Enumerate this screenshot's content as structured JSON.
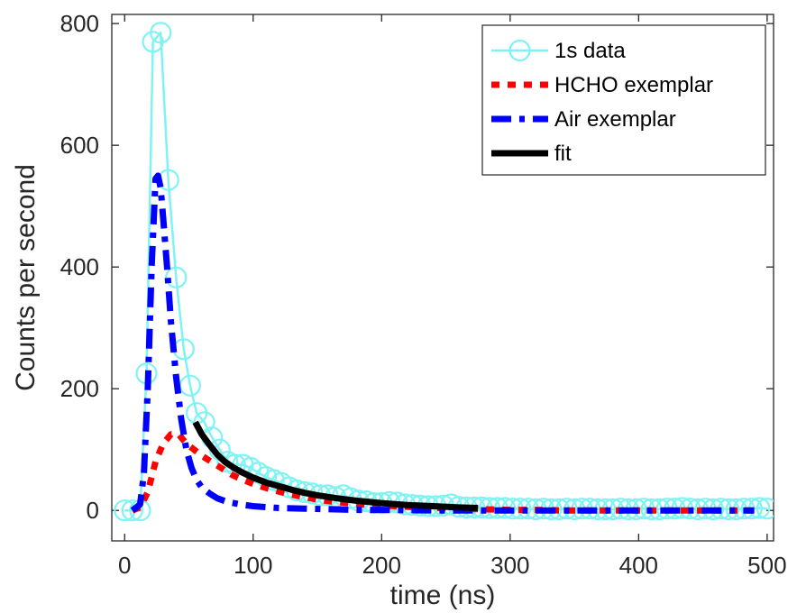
{
  "chart_data": {
    "type": "line",
    "xlabel": "time (ns)",
    "ylabel": "Counts per second",
    "xlim": [
      -10,
      505
    ],
    "ylim": [
      -50,
      815
    ],
    "x_ticks": [
      0,
      100,
      200,
      300,
      400,
      500
    ],
    "y_ticks": [
      0,
      200,
      400,
      600,
      800
    ],
    "x_tick_labels": [
      "0",
      "100",
      "200",
      "300",
      "400",
      "500"
    ],
    "y_tick_labels": [
      "0",
      "200",
      "400",
      "600",
      "800"
    ],
    "grid": false,
    "legend_position": "top-right",
    "series": [
      {
        "name": "1s data",
        "style": "solid-circle",
        "color": "#7ff3f3",
        "points": [
          [
            0,
            0
          ],
          [
            6,
            0
          ],
          [
            12,
            0
          ],
          [
            17,
            225
          ],
          [
            22,
            770
          ],
          [
            28,
            785
          ],
          [
            34,
            543
          ],
          [
            40,
            383
          ],
          [
            46,
            265
          ],
          [
            51,
            205
          ],
          [
            56,
            160
          ],
          [
            62,
            145
          ],
          [
            68,
            120
          ],
          [
            74,
            100
          ],
          [
            80,
            80
          ],
          [
            86,
            75
          ],
          [
            92,
            75
          ],
          [
            98,
            70
          ],
          [
            104,
            62
          ],
          [
            110,
            55
          ],
          [
            116,
            50
          ],
          [
            122,
            45
          ],
          [
            128,
            38
          ],
          [
            134,
            33
          ],
          [
            140,
            30
          ],
          [
            146,
            28
          ],
          [
            152,
            25
          ],
          [
            158,
            25
          ],
          [
            164,
            22
          ],
          [
            170,
            25
          ],
          [
            176,
            20
          ],
          [
            182,
            16
          ],
          [
            188,
            15
          ],
          [
            194,
            12
          ],
          [
            200,
            12
          ],
          [
            206,
            14
          ],
          [
            212,
            13
          ],
          [
            218,
            10
          ],
          [
            224,
            9
          ],
          [
            230,
            8
          ],
          [
            236,
            7
          ],
          [
            242,
            7
          ],
          [
            248,
            8
          ],
          [
            254,
            10
          ],
          [
            260,
            6
          ],
          [
            266,
            5
          ],
          [
            272,
            5
          ],
          [
            278,
            5
          ],
          [
            284,
            4
          ],
          [
            290,
            4
          ],
          [
            296,
            4
          ],
          [
            302,
            3
          ],
          [
            308,
            3
          ],
          [
            314,
            3
          ],
          [
            320,
            2
          ],
          [
            326,
            3
          ],
          [
            332,
            2
          ],
          [
            338,
            2
          ],
          [
            344,
            3
          ],
          [
            350,
            2
          ],
          [
            356,
            3
          ],
          [
            362,
            3
          ],
          [
            368,
            2
          ],
          [
            374,
            2
          ],
          [
            380,
            2
          ],
          [
            386,
            3
          ],
          [
            392,
            2
          ],
          [
            398,
            2
          ],
          [
            404,
            3
          ],
          [
            410,
            2
          ],
          [
            416,
            2
          ],
          [
            422,
            3
          ],
          [
            428,
            3
          ],
          [
            434,
            4
          ],
          [
            440,
            3
          ],
          [
            446,
            2
          ],
          [
            452,
            3
          ],
          [
            458,
            2
          ],
          [
            464,
            3
          ],
          [
            470,
            2
          ],
          [
            476,
            2
          ],
          [
            482,
            3
          ],
          [
            488,
            3
          ],
          [
            494,
            4
          ],
          [
            500,
            3
          ]
        ]
      },
      {
        "name": "HCHO exemplar",
        "style": "dotted",
        "color": "#ff0000",
        "points": [
          [
            6,
            0
          ],
          [
            12,
            5
          ],
          [
            18,
            30
          ],
          [
            24,
            80
          ],
          [
            30,
            110
          ],
          [
            36,
            125
          ],
          [
            42,
            125
          ],
          [
            48,
            110
          ],
          [
            54,
            100
          ],
          [
            60,
            90
          ],
          [
            66,
            82
          ],
          [
            72,
            74
          ],
          [
            78,
            66
          ],
          [
            84,
            58
          ],
          [
            90,
            52
          ],
          [
            96,
            47
          ],
          [
            102,
            42
          ],
          [
            110,
            37
          ],
          [
            120,
            31
          ],
          [
            130,
            26
          ],
          [
            140,
            22
          ],
          [
            150,
            18
          ],
          [
            160,
            15
          ],
          [
            170,
            13
          ],
          [
            180,
            11
          ],
          [
            190,
            9
          ],
          [
            200,
            8
          ],
          [
            220,
            6
          ],
          [
            240,
            4
          ],
          [
            260,
            3
          ],
          [
            280,
            2
          ],
          [
            300,
            1
          ],
          [
            320,
            1
          ],
          [
            340,
            0
          ],
          [
            360,
            0
          ],
          [
            380,
            0
          ],
          [
            400,
            0
          ],
          [
            420,
            0
          ],
          [
            440,
            0
          ],
          [
            460,
            0
          ],
          [
            480,
            0
          ],
          [
            490,
            0
          ]
        ]
      },
      {
        "name": "Air exemplar",
        "style": "dashdot",
        "color": "#0000ff",
        "points": [
          [
            6,
            0
          ],
          [
            12,
            10
          ],
          [
            15,
            60
          ],
          [
            18,
            200
          ],
          [
            21,
            400
          ],
          [
            24,
            545
          ],
          [
            26,
            550
          ],
          [
            28,
            530
          ],
          [
            30,
            480
          ],
          [
            33,
            400
          ],
          [
            36,
            310
          ],
          [
            40,
            220
          ],
          [
            44,
            150
          ],
          [
            48,
            100
          ],
          [
            52,
            70
          ],
          [
            56,
            50
          ],
          [
            60,
            38
          ],
          [
            66,
            28
          ],
          [
            72,
            20
          ],
          [
            80,
            14
          ],
          [
            90,
            10
          ],
          [
            100,
            7
          ],
          [
            120,
            4
          ],
          [
            140,
            3
          ],
          [
            160,
            2
          ],
          [
            180,
            1
          ],
          [
            200,
            1
          ],
          [
            240,
            0
          ],
          [
            280,
            0
          ],
          [
            320,
            0
          ],
          [
            360,
            0
          ],
          [
            400,
            0
          ],
          [
            440,
            0
          ],
          [
            480,
            0
          ],
          [
            490,
            0
          ]
        ]
      },
      {
        "name": "fit",
        "style": "solid-thick",
        "color": "#000000",
        "points": [
          [
            55,
            145
          ],
          [
            60,
            125
          ],
          [
            66,
            108
          ],
          [
            72,
            92
          ],
          [
            78,
            80
          ],
          [
            85,
            70
          ],
          [
            92,
            62
          ],
          [
            100,
            54
          ],
          [
            110,
            46
          ],
          [
            120,
            40
          ],
          [
            130,
            34
          ],
          [
            140,
            29
          ],
          [
            150,
            25
          ],
          [
            165,
            20
          ],
          [
            180,
            16
          ],
          [
            200,
            12
          ],
          [
            220,
            9
          ],
          [
            240,
            7
          ],
          [
            260,
            5
          ],
          [
            275,
            4
          ]
        ]
      }
    ]
  }
}
